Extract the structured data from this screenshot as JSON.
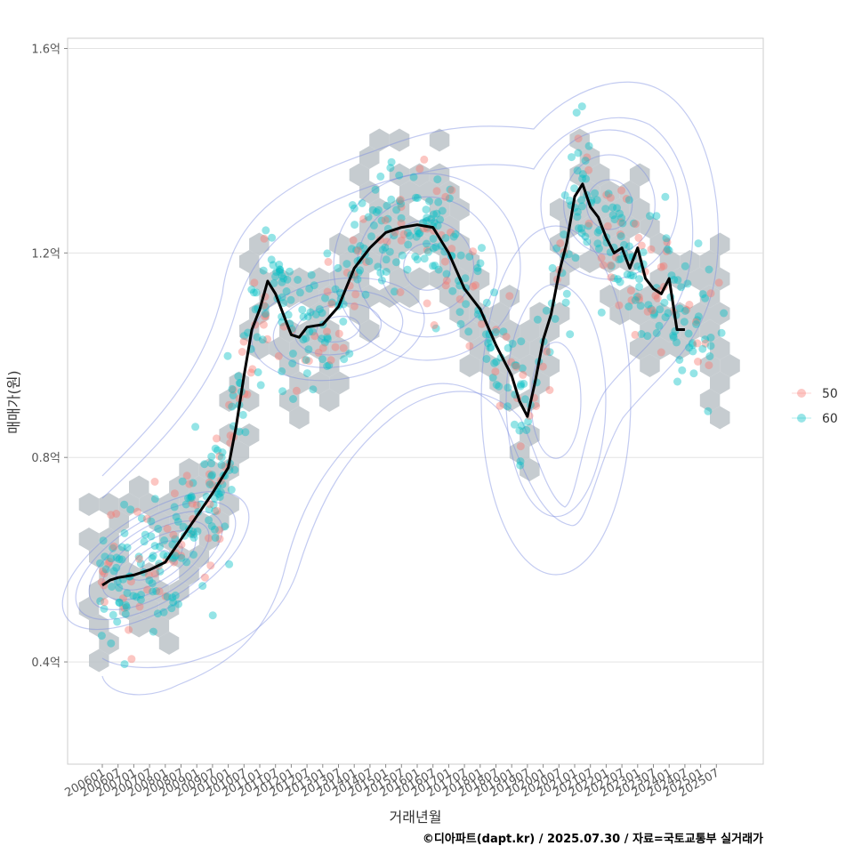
{
  "chart_data": {
    "type": "scatter",
    "title": "",
    "xlabel": "거래년월",
    "ylabel": "매매가(원)",
    "caption": "©디아파트(dapt.kr) / 2025.07.30 / 자료=국토교통부 실거래가",
    "ylim": [
      0.2,
      1.62
    ],
    "y_ticks": [
      {
        "value": 0.4,
        "label": "0.4억"
      },
      {
        "value": 0.8,
        "label": "0.8억"
      },
      {
        "value": 1.2,
        "label": "1.2억"
      },
      {
        "value": 1.6,
        "label": "1.6억"
      }
    ],
    "x_ticks": [
      "200601",
      "200607",
      "200701",
      "200707",
      "200801",
      "200807",
      "200901",
      "200907",
      "201001",
      "201007",
      "201101",
      "201107",
      "201201",
      "201207",
      "201301",
      "201307",
      "201401",
      "201407",
      "201501",
      "201507",
      "201601",
      "201607",
      "201701",
      "201707",
      "201801",
      "201807",
      "201901",
      "201907",
      "202001",
      "202007",
      "202101",
      "202107",
      "202201",
      "202207",
      "202301",
      "202307",
      "202401",
      "202407",
      "202501",
      "202507"
    ],
    "grid": true,
    "legend_position": "right",
    "legend": [
      {
        "label": "50",
        "color": "#F8766D"
      },
      {
        "label": "60",
        "color": "#00BFC4"
      }
    ],
    "trend_line": {
      "color": "#000000",
      "points": [
        [
          "200601",
          0.55
        ],
        [
          "200604",
          0.56
        ],
        [
          "200607",
          0.565
        ],
        [
          "200701",
          0.57
        ],
        [
          "200707",
          0.58
        ],
        [
          "200801",
          0.595
        ],
        [
          "200807",
          0.64
        ],
        [
          "200901",
          0.685
        ],
        [
          "200907",
          0.73
        ],
        [
          "201001",
          0.78
        ],
        [
          "201004",
          0.86
        ],
        [
          "201007",
          0.96
        ],
        [
          "201010",
          1.05
        ],
        [
          "201101",
          1.09
        ],
        [
          "201104",
          1.145
        ],
        [
          "201107",
          1.12
        ],
        [
          "201110",
          1.08
        ],
        [
          "201201",
          1.04
        ],
        [
          "201204",
          1.035
        ],
        [
          "201207",
          1.055
        ],
        [
          "201301",
          1.06
        ],
        [
          "201307",
          1.095
        ],
        [
          "201401",
          1.17
        ],
        [
          "201407",
          1.21
        ],
        [
          "201501",
          1.24
        ],
        [
          "201507",
          1.25
        ],
        [
          "201601",
          1.255
        ],
        [
          "201607",
          1.25
        ],
        [
          "201701",
          1.2
        ],
        [
          "201707",
          1.13
        ],
        [
          "201801",
          1.09
        ],
        [
          "201807",
          1.02
        ],
        [
          "201901",
          0.96
        ],
        [
          "201904",
          0.91
        ],
        [
          "201907",
          0.88
        ],
        [
          "201910",
          0.95
        ],
        [
          "202001",
          1.03
        ],
        [
          "202004",
          1.08
        ],
        [
          "202007",
          1.16
        ],
        [
          "202010",
          1.22
        ],
        [
          "202101",
          1.31
        ],
        [
          "202104",
          1.335
        ],
        [
          "202107",
          1.29
        ],
        [
          "202110",
          1.27
        ],
        [
          "202201",
          1.23
        ],
        [
          "202204",
          1.2
        ],
        [
          "202207",
          1.21
        ],
        [
          "202210",
          1.17
        ],
        [
          "202301",
          1.21
        ],
        [
          "202304",
          1.15
        ],
        [
          "202307",
          1.13
        ],
        [
          "202310",
          1.12
        ],
        [
          "202401",
          1.15
        ],
        [
          "202404",
          1.05
        ],
        [
          "202407",
          1.05
        ]
      ]
    },
    "series": [
      {
        "name": "50",
        "color": "#F8766D"
      },
      {
        "name": "60",
        "color": "#00BFC4"
      }
    ]
  }
}
